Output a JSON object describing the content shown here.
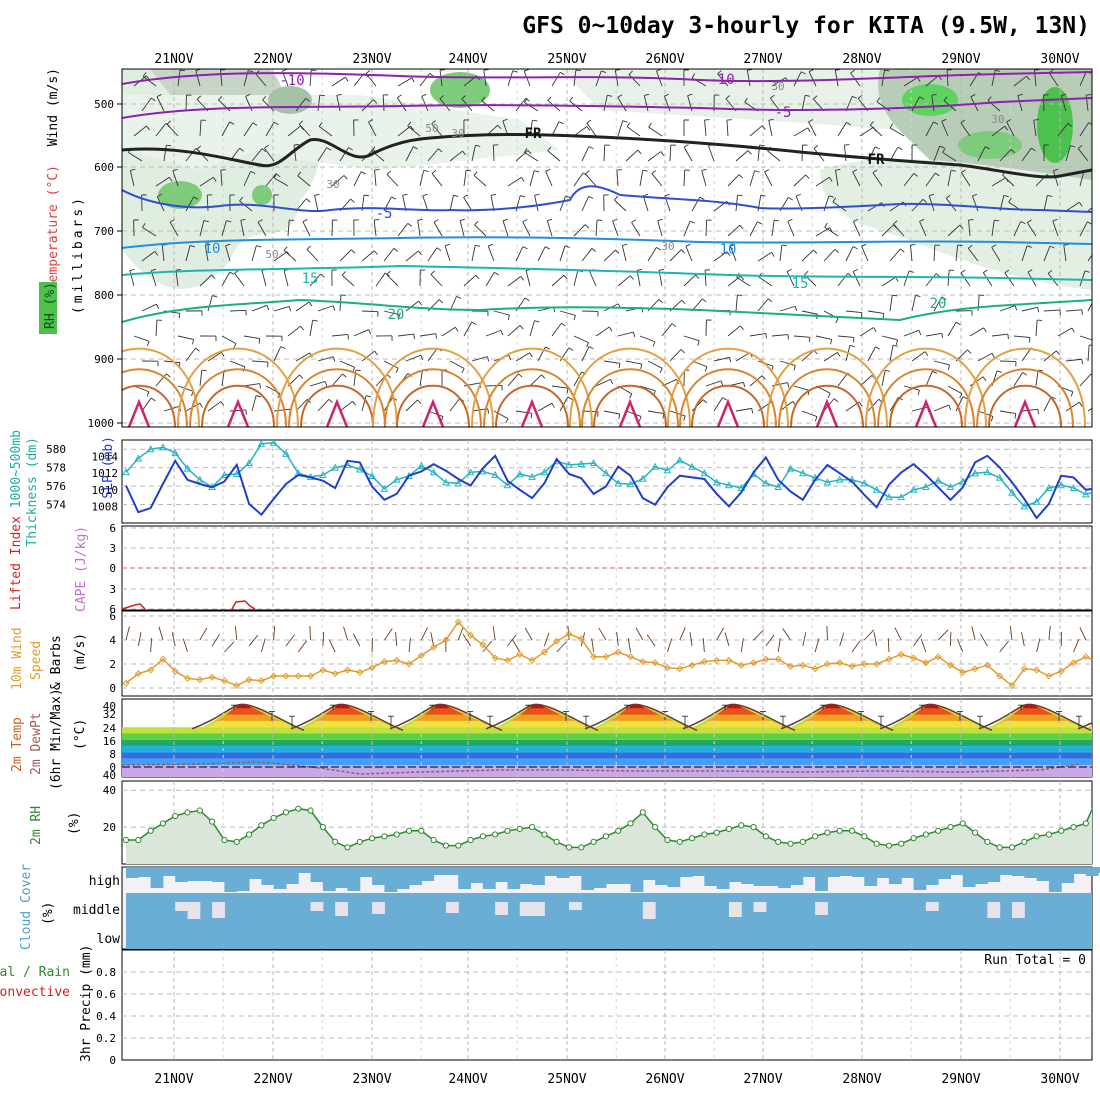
{
  "header": {
    "title": "GFS 0~10day 3-hourly for KITA (9.5W, 13N)"
  },
  "dates": [
    "21NOV",
    "22NOV",
    "23NOV",
    "24NOV",
    "25NOV",
    "26NOV",
    "27NOV",
    "28NOV",
    "29NOV",
    "30NOV"
  ],
  "panels": {
    "upper_air": {
      "side_labels": {
        "wind": "Wind (m/s)",
        "temperature": "Temperature (°C)",
        "rh": "RH (%)",
        "pressure": "(millibars)"
      },
      "pressure_levels": [
        "500",
        "600",
        "700",
        "800",
        "900",
        "1000"
      ],
      "isotherm_labels": [
        "-10",
        "-10",
        "-5",
        "FR",
        "FR",
        "-5",
        "10",
        "10",
        "15",
        "15",
        "20",
        "20"
      ],
      "rh_labels": [
        "30",
        "50",
        "30",
        "30",
        "50",
        "30",
        "30"
      ]
    },
    "thickness": {
      "side_labels": {
        "thickness": "1000~500mb",
        "thickness2": "Thickness (dm)",
        "slp": "SLP (mb)"
      },
      "thickness_ticks": [
        "580",
        "578",
        "576",
        "574"
      ],
      "slp_ticks": [
        "1014",
        "1012",
        "1010",
        "1008"
      ]
    },
    "stability": {
      "side_labels": {
        "li": "Lifted Index",
        "cape": "CAPE (J/kg)"
      },
      "li_ticks": [
        "6",
        "3",
        "0",
        "3",
        "6"
      ]
    },
    "wind10m": {
      "side_labels": {
        "l1": "10m Wind",
        "l2": "Speed",
        "l3": "& Barbs",
        "units": "(m/s)"
      },
      "ticks": [
        "6",
        "4",
        "2",
        "0"
      ]
    },
    "temp2m": {
      "side_labels": {
        "l1": "2m Temp",
        "l2": "2m DewPt",
        "l3": "(6hr Min/Max)",
        "units": "(°C)"
      },
      "ticks": [
        "40",
        "32",
        "24",
        "16",
        "8",
        "0",
        "40"
      ]
    },
    "rh2m": {
      "side_labels": {
        "l1": "2m RH",
        "units": "(%)"
      },
      "ticks": [
        "40",
        "20"
      ]
    },
    "cloud": {
      "side_labels": {
        "l1": "Cloud Cover",
        "units": "(%)"
      },
      "levels": [
        "high",
        "middle",
        "low"
      ]
    },
    "precip": {
      "side_labels": {
        "l1": "tal / Rain",
        "l2": "Convective",
        "l3": "3hr Precip (mm)"
      },
      "ticks": [
        "0.8",
        "0.6",
        "0.4",
        "0.2",
        "0"
      ],
      "run_total": "Run Total = 0"
    }
  },
  "colors": {
    "slp": "#1f3fc8",
    "thickness": "#22b5c0",
    "wind": "#e39a2e",
    "rh": "#2e8b2e",
    "cloud": "#6aaed6",
    "li": "#d81f1f",
    "cape": "#c070d0"
  },
  "chart_data": [
    {
      "type": "line",
      "title": "1000~500mb Thickness (dm) / SLP (mb)",
      "x": [
        0,
        1,
        2,
        3,
        4,
        5,
        6,
        7,
        8,
        9,
        10,
        11,
        12,
        13,
        14,
        15,
        16,
        17,
        18,
        19,
        20,
        21,
        22,
        23,
        24,
        25,
        26,
        27,
        28,
        29,
        30,
        31,
        32,
        33,
        34,
        35,
        36,
        37,
        38,
        39,
        40,
        41,
        42,
        43,
        44,
        45,
        46,
        47,
        48,
        49,
        50,
        51,
        52,
        53,
        54,
        55,
        56,
        57,
        58,
        59,
        60,
        61,
        62,
        63,
        64,
        65,
        66,
        67,
        68,
        69,
        70,
        71,
        72,
        73,
        74,
        75,
        76,
        77,
        78,
        79
      ],
      "series": [
        {
          "name": "SLP (mb)",
          "values": [
            1010.5,
            1007.3,
            1007.8,
            1010.7,
            1013.5,
            1011.2,
            1010.7,
            1010.3,
            1011.0,
            1013.0,
            1008.3,
            1007.0,
            1008.9,
            1010.7,
            1011.8,
            1011.5,
            1011.1,
            1010.2,
            1013.5,
            1013.3,
            1010.4,
            1008.8,
            1009.5,
            1011.7,
            1012.2,
            1013.1,
            1012.3,
            1011.3,
            1010.5,
            1012.6,
            1014.1,
            1011.1,
            1010.0,
            1009.0,
            1010.8,
            1013.7,
            1011.9,
            1011.4,
            1009.5,
            1010.4,
            1012.8,
            1011.7,
            1009.0,
            1008.2,
            1010.3,
            1011.7,
            1011.5,
            1011.3,
            1009.5,
            1008.0,
            1009.7,
            1012.1,
            1013.9,
            1011.2,
            1009.8,
            1008.8,
            1011.2,
            1013.0,
            1012.0,
            1011.0,
            1009.4,
            1007.9,
            1010.6,
            1012.1,
            1013.1,
            1011.8,
            1010.3,
            1008.8,
            1010.3,
            1013.3,
            1014.1,
            1012.7,
            1010.9,
            1008.9,
            1006.6,
            1008.3,
            1011.7,
            1011.5,
            1010.0,
            1010.2
          ]
        },
        {
          "name": "Thickness (dm)",
          "values": [
            577.5,
            579.0,
            580.0,
            580.2,
            579.6,
            577.9,
            576.7,
            575.9,
            577.2,
            577.3,
            578.5,
            580.6,
            580.7,
            579.5,
            577.4,
            577.0,
            577.2,
            578.0,
            578.3,
            577.8,
            577.1,
            575.7,
            576.7,
            577.1,
            578.2,
            577.5,
            576.4,
            576.3,
            577.5,
            577.6,
            577.2,
            576.1,
            577.3,
            577.0,
            577.5,
            578.7,
            578.3,
            578.4,
            578.5,
            577.4,
            576.3,
            576.2,
            576.8,
            578.1,
            577.7,
            578.8,
            578.1,
            577.4,
            576.4,
            576.1,
            575.8,
            577.3,
            576.3,
            575.9,
            577.9,
            577.4,
            576.9,
            576.4,
            576.7,
            576.7,
            576.3,
            575.6,
            574.8,
            574.8,
            575.6,
            575.9,
            576.6,
            575.9,
            576.5,
            577.4,
            577.5,
            576.9,
            575.3,
            573.8,
            574.3,
            575.8,
            576.1,
            575.8,
            575.1,
            575.5
          ]
        }
      ],
      "slp_ylim": [
        1006,
        1016
      ],
      "thickness_ylim": [
        572,
        581
      ]
    },
    {
      "type": "line",
      "title": "10m Wind Speed (m/s)",
      "x": [
        0,
        1,
        2,
        3,
        4,
        5,
        6,
        7,
        8,
        9,
        10,
        11,
        12,
        13,
        14,
        15,
        16,
        17,
        18,
        19,
        20,
        21,
        22,
        23,
        24,
        25,
        26,
        27,
        28,
        29,
        30,
        31,
        32,
        33,
        34,
        35,
        36,
        37,
        38,
        39,
        40,
        41,
        42,
        43,
        44,
        45,
        46,
        47,
        48,
        49,
        50,
        51,
        52,
        53,
        54,
        55,
        56,
        57,
        58,
        59,
        60,
        61,
        62,
        63,
        64,
        65,
        66,
        67,
        68,
        69,
        70,
        71,
        72,
        73,
        74,
        75,
        76,
        77,
        78,
        79
      ],
      "series": [
        {
          "name": "Wind speed",
          "values": [
            0.4,
            1.2,
            1.5,
            2.4,
            1.4,
            0.8,
            0.7,
            0.9,
            0.6,
            0.2,
            0.7,
            0.6,
            1.0,
            1.0,
            1.0,
            1.0,
            1.5,
            1.2,
            1.5,
            1.3,
            1.7,
            2.2,
            2.3,
            2.0,
            2.7,
            3.4,
            4.0,
            5.5,
            4.4,
            3.6,
            2.5,
            2.3,
            2.8,
            2.3,
            3.0,
            3.9,
            4.5,
            4.1,
            2.6,
            2.6,
            3.0,
            2.6,
            2.2,
            2.1,
            1.7,
            1.6,
            1.9,
            2.2,
            2.3,
            2.3,
            1.9,
            2.1,
            2.4,
            2.4,
            1.8,
            1.9,
            1.6,
            2.0,
            2.1,
            1.8,
            2.0,
            2.0,
            2.4,
            2.8,
            2.5,
            2.1,
            2.6,
            1.9,
            1.3,
            1.6,
            1.9,
            1.0,
            0.2,
            1.6,
            1.5,
            1.0,
            1.4,
            2.1,
            2.6,
            2.1
          ]
        }
      ],
      "ylim": [
        0,
        6
      ]
    },
    {
      "type": "line",
      "title": "2m RH (%)",
      "x": [
        0,
        1,
        2,
        3,
        4,
        5,
        6,
        7,
        8,
        9,
        10,
        11,
        12,
        13,
        14,
        15,
        16,
        17,
        18,
        19,
        20,
        21,
        22,
        23,
        24,
        25,
        26,
        27,
        28,
        29,
        30,
        31,
        32,
        33,
        34,
        35,
        36,
        37,
        38,
        39,
        40,
        41,
        42,
        43,
        44,
        45,
        46,
        47,
        48,
        49,
        50,
        51,
        52,
        53,
        54,
        55,
        56,
        57,
        58,
        59,
        60,
        61,
        62,
        63,
        64,
        65,
        66,
        67,
        68,
        69,
        70,
        71,
        72,
        73,
        74,
        75,
        76,
        77,
        78,
        79
      ],
      "series": [
        {
          "name": "2m RH",
          "values": [
            13,
            13,
            18,
            22,
            26,
            28,
            29,
            23,
            13,
            12,
            16,
            21,
            25,
            28,
            30,
            29,
            20,
            12,
            9,
            12,
            14,
            15,
            16,
            18,
            18,
            13,
            10,
            10,
            13,
            15,
            16,
            18,
            19,
            20,
            16,
            12,
            9,
            9,
            12,
            15,
            18,
            22,
            28,
            20,
            13,
            12,
            14,
            16,
            17,
            19,
            21,
            20,
            15,
            12,
            11,
            12,
            15,
            17,
            18,
            18,
            15,
            11,
            10,
            11,
            14,
            16,
            18,
            20,
            22,
            17,
            12,
            9,
            9,
            12,
            15,
            16,
            18,
            20,
            22,
            37
          ]
        }
      ],
      "ylim": [
        0,
        45
      ]
    },
    {
      "type": "area",
      "title": "2m Temp (°C)",
      "x_days": [
        "21NOV",
        "22NOV",
        "23NOV",
        "24NOV",
        "25NOV",
        "26NOV",
        "27NOV",
        "28NOV",
        "29NOV",
        "30NOV"
      ],
      "daily_max": [
        38.5,
        38.5,
        38.5,
        38.5,
        38.5,
        38.5,
        38.5,
        38.5,
        38.5,
        38.5
      ],
      "daily_min": [
        22,
        22,
        22,
        22,
        22,
        22,
        22,
        22,
        22,
        22
      ],
      "ylim": [
        0,
        40
      ]
    },
    {
      "type": "table",
      "title": "3hr Precip (mm)",
      "ylim": [
        0,
        1
      ],
      "run_total": "Run Total = 0"
    }
  ]
}
